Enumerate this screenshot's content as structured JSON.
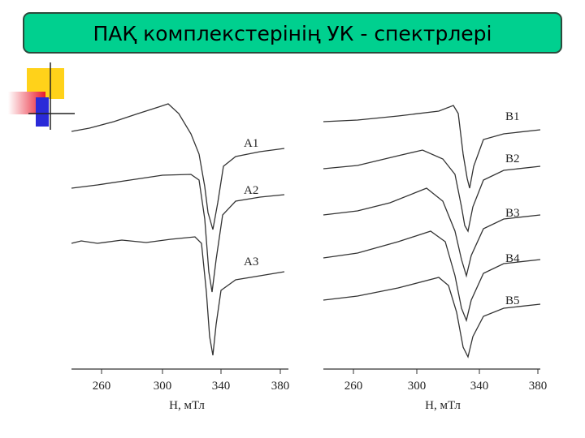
{
  "header": {
    "title": "ПАҚ комплекстерінің УК - спектрлері"
  },
  "panels": [
    {
      "curves": [
        "А1",
        "А2",
        "А3"
      ],
      "xticks": [
        "260",
        "300",
        "340",
        "380"
      ],
      "xlabel": "Н, мТл"
    },
    {
      "curves": [
        "В1",
        "В2",
        "В3",
        "В4",
        "В5"
      ],
      "xticks": [
        "260",
        "300",
        "340",
        "380"
      ],
      "xlabel": "Н, мТл"
    }
  ]
}
